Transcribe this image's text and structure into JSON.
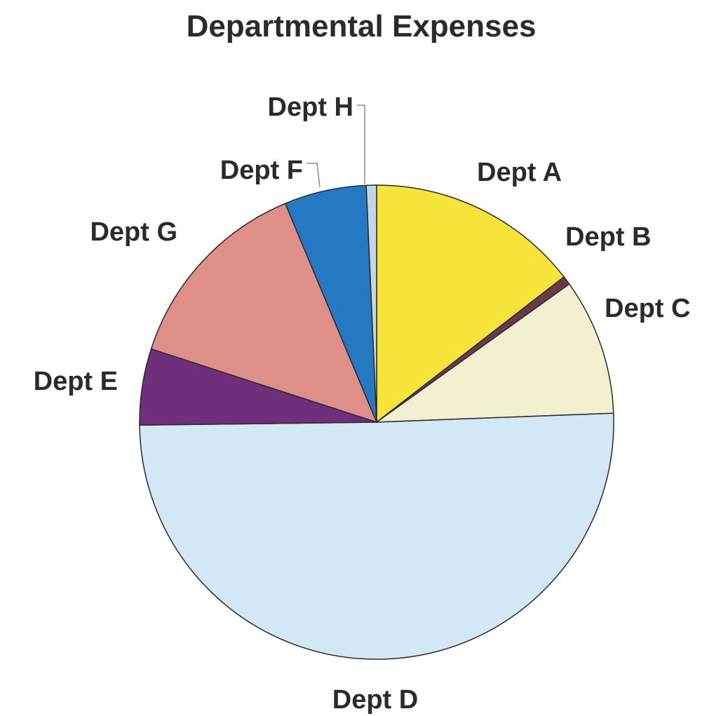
{
  "chart_data": {
    "type": "pie",
    "title": "Departmental Expenses",
    "start_angle_deg": 0,
    "direction": "clockwise",
    "slices": [
      {
        "label": "Dept A",
        "value": 14.5,
        "color": "#f6e43b"
      },
      {
        "label": "Dept B",
        "value": 0.6,
        "color": "#6b3a4a"
      },
      {
        "label": "Dept C",
        "value": 9.3,
        "color": "#f3f0d2"
      },
      {
        "label": "Dept D",
        "value": 50.4,
        "color": "#d4e7f5"
      },
      {
        "label": "Dept E",
        "value": 5.2,
        "color": "#6f2f7a"
      },
      {
        "label": "Dept G",
        "value": 13.7,
        "color": "#de8f88"
      },
      {
        "label": "Dept F",
        "value": 5.6,
        "color": "#2578c2"
      },
      {
        "label": "Dept H",
        "value": 0.7,
        "color": "#c5d4e6"
      }
    ]
  }
}
